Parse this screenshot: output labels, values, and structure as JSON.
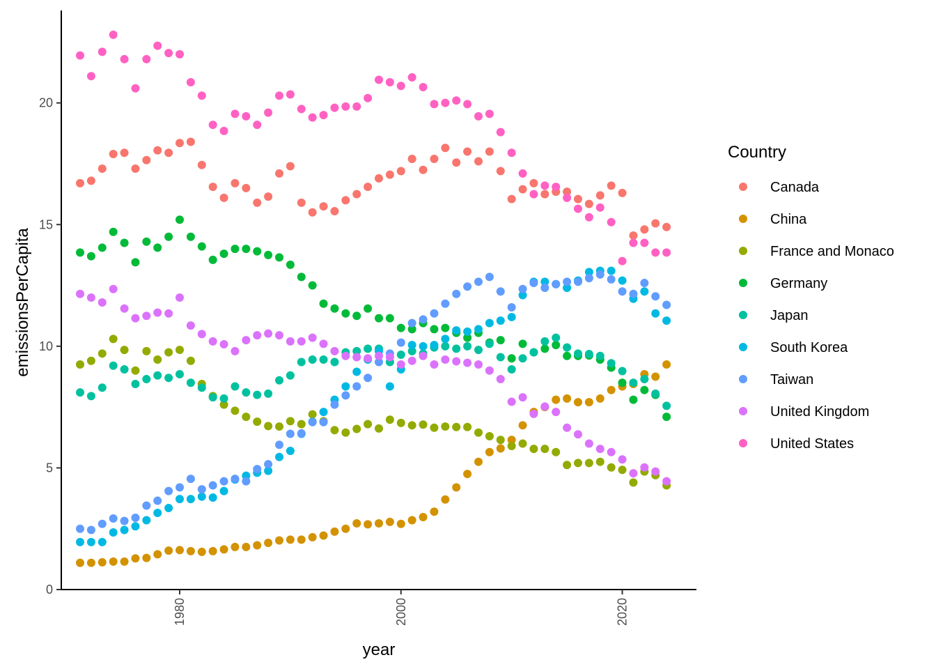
{
  "chart_data": {
    "type": "scatter",
    "xlabel": "year",
    "ylabel": "emissionsPerCapita",
    "xlim": [
      1969.3,
      2026.7
    ],
    "ylim": [
      0,
      23.8
    ],
    "x_ticks": [
      1980,
      2000,
      2020
    ],
    "x_tick_labels": [
      "1980",
      "2000",
      "2020"
    ],
    "y_ticks": [
      0,
      5,
      10,
      15,
      20
    ],
    "y_tick_labels": [
      "0",
      "5",
      "10",
      "15",
      "20"
    ],
    "grid": false,
    "legend": {
      "title": "Country",
      "placement": "right"
    },
    "x": [
      1971,
      1972,
      1973,
      1974,
      1975,
      1976,
      1977,
      1978,
      1979,
      1980,
      1981,
      1982,
      1983,
      1984,
      1985,
      1986,
      1987,
      1988,
      1989,
      1990,
      1991,
      1992,
      1993,
      1994,
      1995,
      1996,
      1997,
      1998,
      1999,
      2000,
      2001,
      2002,
      2003,
      2004,
      2005,
      2006,
      2007,
      2008,
      2009,
      2010,
      2011,
      2012,
      2013,
      2014,
      2015,
      2016,
      2017,
      2018,
      2019,
      2020,
      2021,
      2022,
      2023,
      2024
    ],
    "series": [
      {
        "name": "Canada",
        "color": "#F8766D",
        "values": [
          16.7,
          16.8,
          17.3,
          17.9,
          17.95,
          17.3,
          17.65,
          18.05,
          17.95,
          18.35,
          18.4,
          17.45,
          16.55,
          16.1,
          16.7,
          16.5,
          15.9,
          16.15,
          17.1,
          17.4,
          15.9,
          15.5,
          15.75,
          15.55,
          16.0,
          16.25,
          16.55,
          16.9,
          17.05,
          17.2,
          17.7,
          17.25,
          17.7,
          18.15,
          17.55,
          18.0,
          17.6,
          18.0,
          17.2,
          16.05,
          16.45,
          16.7,
          16.25,
          16.35,
          16.35,
          16.05,
          15.85,
          16.2,
          16.6,
          16.3,
          14.55,
          14.8,
          15.05,
          14.9
        ]
      },
      {
        "name": "China",
        "color": "#D39200",
        "values": [
          1.1,
          1.1,
          1.12,
          1.15,
          1.15,
          1.28,
          1.3,
          1.45,
          1.6,
          1.62,
          1.58,
          1.55,
          1.58,
          1.65,
          1.75,
          1.75,
          1.82,
          1.92,
          2.02,
          2.05,
          2.05,
          2.15,
          2.22,
          2.38,
          2.5,
          2.72,
          2.68,
          2.72,
          2.78,
          2.7,
          2.85,
          2.98,
          3.2,
          3.7,
          4.2,
          4.75,
          5.25,
          5.65,
          5.8,
          6.15,
          6.75,
          7.3,
          7.5,
          7.8,
          7.85,
          7.7,
          7.7,
          7.85,
          8.2,
          8.35,
          8.45,
          8.85,
          8.75,
          9.25
        ]
      },
      {
        "name": "France and Monaco",
        "color": "#93AA00",
        "values": [
          9.25,
          9.4,
          9.7,
          10.3,
          9.85,
          9.0,
          9.8,
          9.45,
          9.75,
          9.85,
          9.4,
          8.45,
          7.95,
          7.6,
          7.35,
          7.1,
          6.9,
          6.72,
          6.7,
          6.92,
          6.8,
          7.2,
          6.92,
          6.55,
          6.45,
          6.6,
          6.8,
          6.62,
          6.98,
          6.85,
          6.75,
          6.78,
          6.65,
          6.7,
          6.68,
          6.68,
          6.45,
          6.3,
          6.15,
          5.9,
          6.0,
          5.78,
          5.78,
          5.65,
          5.12,
          5.2,
          5.2,
          5.25,
          5.02,
          4.92,
          4.4,
          4.85,
          4.7,
          4.28
        ]
      },
      {
        "name": "Germany",
        "color": "#00BA38",
        "values": [
          13.85,
          13.7,
          14.05,
          14.7,
          14.25,
          13.45,
          14.3,
          14.05,
          14.5,
          15.2,
          14.5,
          14.1,
          13.55,
          13.8,
          14.0,
          14.0,
          13.9,
          13.75,
          13.65,
          13.35,
          12.85,
          12.5,
          11.75,
          11.55,
          11.35,
          11.25,
          11.55,
          11.15,
          11.15,
          10.75,
          10.7,
          10.95,
          10.7,
          10.75,
          10.55,
          10.35,
          10.55,
          10.15,
          10.25,
          9.5,
          10.1,
          9.75,
          9.9,
          10.05,
          9.6,
          9.6,
          9.62,
          9.45,
          9.12,
          8.5,
          7.8,
          8.2,
          8.0,
          7.1
        ]
      },
      {
        "name": "Japan",
        "color": "#00C19F",
        "values": [
          8.1,
          7.95,
          8.3,
          9.2,
          9.05,
          8.45,
          8.65,
          8.8,
          8.7,
          8.85,
          8.5,
          8.3,
          7.9,
          7.85,
          8.35,
          8.1,
          8.0,
          8.05,
          8.6,
          8.8,
          9.35,
          9.45,
          9.45,
          9.35,
          9.75,
          9.8,
          9.9,
          9.9,
          9.35,
          9.65,
          9.8,
          9.7,
          9.95,
          10.0,
          9.9,
          10.0,
          9.85,
          10.1,
          9.55,
          9.05,
          9.5,
          9.75,
          10.2,
          10.35,
          9.95,
          9.7,
          9.68,
          9.6,
          9.3,
          8.98,
          8.5,
          8.65,
          8.05,
          7.55
        ]
      },
      {
        "name": "South Korea",
        "color": "#00B9E3",
        "values": [
          1.95,
          1.95,
          1.95,
          2.35,
          2.45,
          2.6,
          2.85,
          3.15,
          3.35,
          3.72,
          3.72,
          3.82,
          3.78,
          4.05,
          4.52,
          4.68,
          4.8,
          4.88,
          5.45,
          5.7,
          6.4,
          6.9,
          7.3,
          7.8,
          8.35,
          8.95,
          9.45,
          9.8,
          8.35,
          9.05,
          10.05,
          10.0,
          10.05,
          10.3,
          10.65,
          10.6,
          10.7,
          10.95,
          11.05,
          11.2,
          12.1,
          12.65,
          12.65,
          12.55,
          12.4,
          12.7,
          13.05,
          13.1,
          13.1,
          12.7,
          11.95,
          12.25,
          11.35,
          11.05
        ]
      },
      {
        "name": "Taiwan",
        "color": "#619CFF",
        "values": [
          2.5,
          2.45,
          2.7,
          2.92,
          2.82,
          2.95,
          3.45,
          3.65,
          4.05,
          4.2,
          4.55,
          4.12,
          4.28,
          4.45,
          4.55,
          4.45,
          4.95,
          5.15,
          5.95,
          6.4,
          6.42,
          6.88,
          6.88,
          7.6,
          7.98,
          8.35,
          8.7,
          9.35,
          9.7,
          10.15,
          10.95,
          11.1,
          11.35,
          11.75,
          12.15,
          12.45,
          12.65,
          12.85,
          12.25,
          11.6,
          12.35,
          12.6,
          12.4,
          12.55,
          12.65,
          12.65,
          12.8,
          12.95,
          12.75,
          12.25,
          12.15,
          12.6,
          12.05,
          11.7
        ]
      },
      {
        "name": "United Kingdom",
        "color": "#DB72FB",
        "values": [
          12.15,
          12.0,
          11.8,
          12.35,
          11.55,
          11.15,
          11.25,
          11.38,
          11.35,
          12.0,
          10.85,
          10.5,
          10.2,
          10.08,
          9.8,
          10.25,
          10.45,
          10.52,
          10.45,
          10.2,
          10.2,
          10.35,
          10.1,
          9.8,
          9.6,
          9.55,
          9.5,
          9.6,
          9.55,
          9.25,
          9.4,
          9.6,
          9.25,
          9.45,
          9.38,
          9.32,
          9.25,
          9.0,
          8.65,
          7.72,
          7.9,
          7.22,
          7.52,
          7.3,
          6.65,
          6.38,
          6.0,
          5.78,
          5.65,
          5.35,
          4.78,
          5.02,
          4.85,
          4.45
        ]
      },
      {
        "name": "United States",
        "color": "#FF61C3",
        "values": [
          21.95,
          21.1,
          22.1,
          22.8,
          21.8,
          20.6,
          21.8,
          22.35,
          22.05,
          22.0,
          20.85,
          20.3,
          19.1,
          18.85,
          19.55,
          19.45,
          19.1,
          19.6,
          20.3,
          20.35,
          19.75,
          19.4,
          19.5,
          19.8,
          19.85,
          19.85,
          20.2,
          20.95,
          20.85,
          20.7,
          21.05,
          20.65,
          19.95,
          20.0,
          20.1,
          19.95,
          19.45,
          19.55,
          18.8,
          17.95,
          17.1,
          16.25,
          16.6,
          16.55,
          16.1,
          15.65,
          15.3,
          15.7,
          15.1,
          13.5,
          14.25,
          14.25,
          13.85,
          13.85
        ]
      }
    ]
  }
}
